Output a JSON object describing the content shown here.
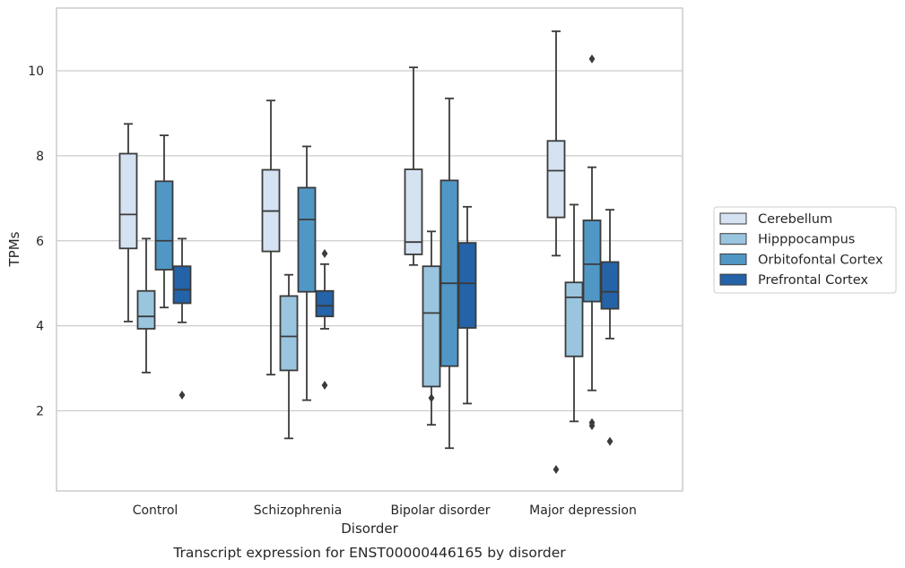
{
  "caption": "Transcript expression for ENST00000446165 by disorder",
  "chart_data": {
    "type": "box",
    "xlabel": "Disorder",
    "ylabel": "TPMs",
    "ylim": [
      0.2,
      11.5
    ],
    "yticks": [
      2,
      4,
      6,
      8,
      10
    ],
    "grid": "horizontal",
    "legend_position": "right",
    "categories": [
      "Control",
      "Schizophrenia",
      "Bipolar disorder",
      "Major depression"
    ],
    "series": [
      {
        "name": "Cerebellum",
        "color": "#d4e2f1",
        "boxes": [
          {
            "whislo": 4.1,
            "q1": 5.82,
            "med": 6.62,
            "q3": 8.05,
            "whishi": 8.75,
            "fliers": []
          },
          {
            "whislo": 2.85,
            "q1": 5.75,
            "med": 6.7,
            "q3": 7.67,
            "whishi": 9.3,
            "fliers": []
          },
          {
            "whislo": 5.43,
            "q1": 5.68,
            "med": 5.97,
            "q3": 7.68,
            "whishi": 10.08,
            "fliers": []
          },
          {
            "whislo": 5.65,
            "q1": 6.55,
            "med": 7.65,
            "q3": 8.35,
            "whishi": 10.93,
            "fliers": [
              0.62
            ]
          }
        ]
      },
      {
        "name": "Hipppocampus",
        "color": "#9ac5df",
        "boxes": [
          {
            "whislo": 2.9,
            "q1": 3.93,
            "med": 4.22,
            "q3": 4.82,
            "whishi": 6.05,
            "fliers": []
          },
          {
            "whislo": 1.35,
            "q1": 2.95,
            "med": 3.75,
            "q3": 4.7,
            "whishi": 5.2,
            "fliers": []
          },
          {
            "whislo": 1.67,
            "q1": 2.57,
            "med": 4.3,
            "q3": 5.4,
            "whishi": 6.22,
            "fliers": [
              2.3
            ]
          },
          {
            "whislo": 1.75,
            "q1": 3.28,
            "med": 4.67,
            "q3": 5.02,
            "whishi": 6.85,
            "fliers": []
          }
        ]
      },
      {
        "name": "Orbitofontal Cortex",
        "color": "#5097c6",
        "boxes": [
          {
            "whislo": 4.43,
            "q1": 5.32,
            "med": 6.0,
            "q3": 7.4,
            "whishi": 8.48,
            "fliers": []
          },
          {
            "whislo": 2.25,
            "q1": 4.8,
            "med": 6.5,
            "q3": 7.25,
            "whishi": 8.22,
            "fliers": []
          },
          {
            "whislo": 1.12,
            "q1": 3.05,
            "med": 5.0,
            "q3": 7.42,
            "whishi": 9.35,
            "fliers": []
          },
          {
            "whislo": 2.48,
            "q1": 4.57,
            "med": 5.45,
            "q3": 6.48,
            "whishi": 7.73,
            "fliers": [
              10.28,
              1.72,
              1.65
            ]
          }
        ]
      },
      {
        "name": "Prefrontal Cortex",
        "color": "#2463a8",
        "boxes": [
          {
            "whislo": 4.08,
            "q1": 4.53,
            "med": 4.85,
            "q3": 5.4,
            "whishi": 6.05,
            "fliers": [
              2.37
            ]
          },
          {
            "whislo": 3.93,
            "q1": 4.22,
            "med": 4.47,
            "q3": 4.82,
            "whishi": 5.45,
            "fliers": [
              5.7,
              2.6
            ]
          },
          {
            "whislo": 2.17,
            "q1": 3.95,
            "med": 5.0,
            "q3": 5.95,
            "whishi": 6.8,
            "fliers": []
          },
          {
            "whislo": 3.7,
            "q1": 4.4,
            "med": 4.8,
            "q3": 5.5,
            "whishi": 6.73,
            "fliers": [
              1.28
            ]
          }
        ]
      }
    ]
  }
}
